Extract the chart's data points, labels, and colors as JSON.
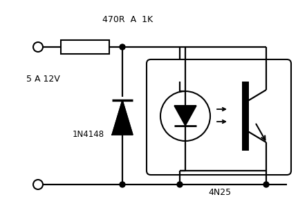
{
  "bg_color": "#ffffff",
  "line_color": "black",
  "text_color": "black",
  "label_470R": "470R  A  1K",
  "label_5A12V": "5 A 12V",
  "label_1N4148": "1N4148",
  "label_4N25": "4N25",
  "figsize": [
    4.44,
    3.14
  ],
  "dpi": 100
}
